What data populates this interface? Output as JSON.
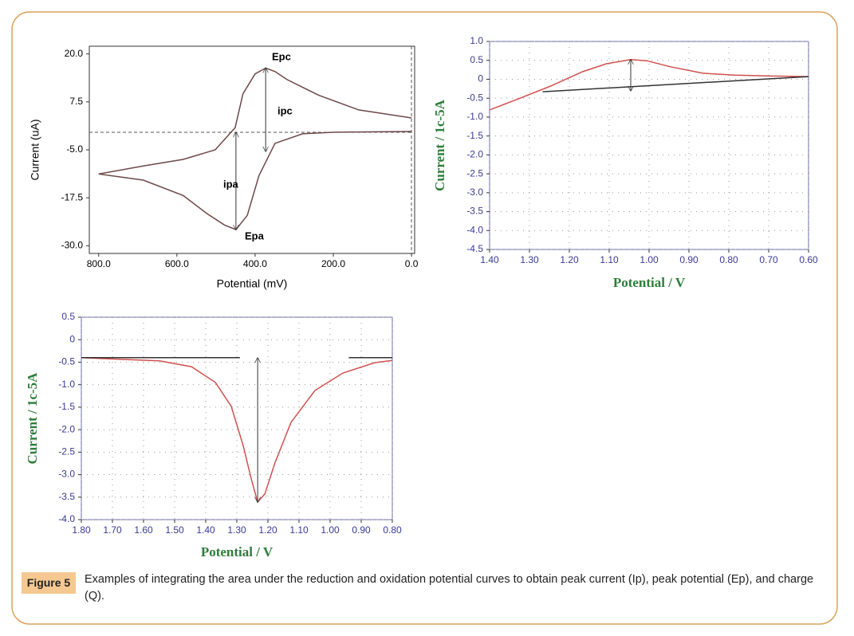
{
  "chart_data": [
    {
      "type": "line",
      "x_label": "Potential (mV)",
      "y_label": "Current (uA)",
      "xlim": [
        824,
        -8
      ],
      "ylim": [
        -32,
        22
      ],
      "xticks": [
        {
          "value": 800,
          "label": "800.0"
        },
        {
          "value": 600,
          "label": "600.0"
        },
        {
          "value": 400,
          "label": "400.0"
        },
        {
          "value": 200,
          "label": "200.0"
        },
        {
          "value": 0,
          "label": "0.0"
        }
      ],
      "yticks": [
        {
          "value": 20,
          "label": "20.0"
        },
        7.5,
        {
          "value": -5,
          "label": "-5.0"
        },
        -17.5,
        {
          "value": -30,
          "label": "-30.0"
        }
      ],
      "annotations": [
        "Epc",
        "ipc",
        "ipa",
        "Epa"
      ],
      "series": [
        {
          "color": "#6e4848",
          "x": [
            0,
            135,
            237,
            318,
            349,
            373,
            400,
            431,
            451,
            502,
            584,
            686,
            800
          ],
          "values": [
            3.3,
            5.4,
            9.2,
            13.3,
            15.4,
            16.3,
            14.8,
            9.6,
            0.8,
            -5.0,
            -7.5,
            -9.2,
            -11.3
          ]
        },
        {
          "color": "#6e4848",
          "x": [
            800,
            686,
            584,
            522,
            478,
            449,
            420,
            390,
            349,
            278,
            196,
            0
          ],
          "values": [
            -11.3,
            -12.9,
            -16.9,
            -21.7,
            -24.6,
            -25.8,
            -22.1,
            -11.7,
            -3.3,
            -0.8,
            -0.4,
            -0.2
          ]
        }
      ]
    },
    {
      "type": "line",
      "x_label": "Potential / V",
      "y_label": "Current / 1c-5A",
      "xlim": [
        1.4,
        0.6
      ],
      "ylim": [
        -4.5,
        1.0
      ],
      "xticks": [
        {
          "value": 1.4,
          "label": "1.40"
        },
        {
          "value": 1.3,
          "label": "1.30"
        },
        {
          "value": 1.2,
          "label": "1.20"
        },
        {
          "value": 1.1,
          "label": "1.10"
        },
        {
          "value": 1.0,
          "label": "1.00"
        },
        {
          "value": 0.9,
          "label": "0.90"
        },
        {
          "value": 0.8,
          "label": "0.80"
        },
        {
          "value": 0.7,
          "label": "0.70"
        },
        {
          "value": 0.6,
          "label": "0.60"
        }
      ],
      "yticks": [
        {
          "value": 1,
          "label": "1.0"
        },
        0.5,
        0,
        -0.5,
        {
          "value": -1,
          "label": "-1.0"
        },
        -1.5,
        {
          "value": -2,
          "label": "-2.0"
        },
        -2.5,
        {
          "value": -3,
          "label": "-3.0"
        },
        -3.5,
        {
          "value": -4,
          "label": "-4.0"
        },
        -4.5
      ],
      "grid": true,
      "series": [
        {
          "color": "#d0504f",
          "x": [
            1.4,
            1.328,
            1.247,
            1.167,
            1.107,
            1.046,
            1.006,
            0.946,
            0.865,
            0.785,
            0.705,
            0.6
          ],
          "values": [
            -0.81,
            -0.52,
            -0.18,
            0.2,
            0.41,
            0.52,
            0.49,
            0.33,
            0.16,
            0.11,
            0.09,
            0.07
          ]
        },
        {
          "color": "#333333",
          "x": [
            1.267,
            0.6
          ],
          "values": [
            -0.33,
            0.07
          ]
        }
      ]
    },
    {
      "type": "line",
      "x_label": "Potential / V",
      "y_label": "Current / 1c-5A",
      "xlim": [
        1.8,
        0.8
      ],
      "ylim": [
        -4.0,
        0.5
      ],
      "xticks": [
        {
          "value": 1.8,
          "label": "1.80"
        },
        {
          "value": 1.7,
          "label": "1.70"
        },
        {
          "value": 1.6,
          "label": "1.60"
        },
        {
          "value": 1.5,
          "label": "1.50"
        },
        {
          "value": 1.4,
          "label": "1.40"
        },
        {
          "value": 1.3,
          "label": "1.30"
        },
        {
          "value": 1.2,
          "label": "1.20"
        },
        {
          "value": 1.1,
          "label": "1.10"
        },
        {
          "value": 1.0,
          "label": "1.00"
        },
        {
          "value": 0.9,
          "label": "0.90"
        },
        {
          "value": 0.8,
          "label": "0.80"
        }
      ],
      "yticks": [
        0.5,
        0,
        -0.5,
        {
          "value": -1,
          "label": "-1.0"
        },
        -1.5,
        {
          "value": -2,
          "label": "-2.0"
        },
        -2.5,
        {
          "value": -3,
          "label": "-3.0"
        },
        -3.5,
        {
          "value": -4,
          "label": "-4.0"
        }
      ],
      "grid": true,
      "series": [
        {
          "color": "#d0504f",
          "x": [
            1.8,
            1.549,
            1.446,
            1.369,
            1.318,
            1.279,
            1.254,
            1.233,
            1.21,
            1.177,
            1.126,
            1.049,
            0.959,
            0.856,
            0.8
          ],
          "values": [
            -0.4,
            -0.47,
            -0.6,
            -0.95,
            -1.48,
            -2.37,
            -3.08,
            -3.61,
            -3.43,
            -2.73,
            -1.84,
            -1.13,
            -0.74,
            -0.51,
            -0.46
          ]
        },
        {
          "color": "#333333",
          "x": [
            1.8,
            1.29
          ],
          "values": [
            -0.4,
            -0.4
          ]
        },
        {
          "color": "#333333",
          "x": [
            0.94,
            0.8
          ],
          "values": [
            -0.4,
            -0.4
          ]
        }
      ]
    }
  ],
  "caption": {
    "label": "Figure 5",
    "text": "Examples of integrating the area under the reduction and oxidation potential curves to obtain peak current (Ip), peak potential (Ep), and charge (Q)."
  }
}
